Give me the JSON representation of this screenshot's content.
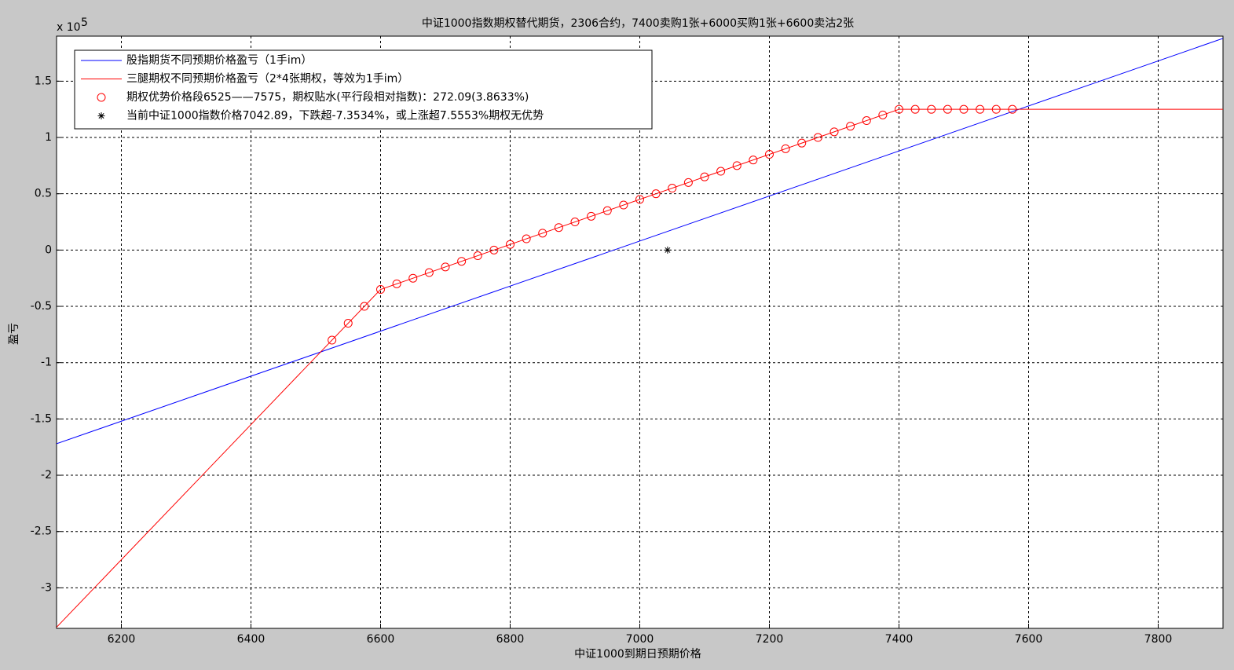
{
  "chart_data": {
    "type": "line",
    "title": "中证1000指数期权替代期货，2306合约，7400卖购1张+6000买购1张+6600卖沽2张",
    "x_label": "中证1000到期日预期价格",
    "y_label": "盈亏",
    "y_multiplier": {
      "base": "x 10",
      "exponent": "5"
    },
    "xlim": [
      6100,
      7900
    ],
    "ylim": [
      -3.36,
      1.9
    ],
    "xticks": [
      6200,
      6400,
      6600,
      6800,
      7000,
      7200,
      7400,
      7600,
      7800
    ],
    "yticks": [
      1.5,
      1,
      0.5,
      0,
      -0.5,
      -1,
      -1.5,
      -2,
      -2.5,
      -3
    ],
    "grid": true,
    "legend": "upper left",
    "series": [
      {
        "name": "股指期货不同预期价格盈亏（1手im）",
        "color": "#0000ff",
        "marker": "none",
        "x": [
          6100,
          7900
        ],
        "values": [
          -1.72,
          1.88
        ]
      },
      {
        "name": "三腿期权不同预期价格盈亏（2*4张期权，等效为1手im）",
        "color": "#ff0000",
        "marker": "none",
        "x": [
          6100,
          6600,
          7400,
          7900
        ],
        "values": [
          -3.35,
          -0.35,
          1.25,
          1.25
        ]
      },
      {
        "name": "期权优势价格段6525——7575，期权贴水(平行段相对指数)：272.09(3.8633%)",
        "color": "#ff0000",
        "marker": "o",
        "x": [
          6525,
          6550,
          6575,
          6600,
          6625,
          6650,
          6675,
          6700,
          6725,
          6750,
          6775,
          6800,
          6825,
          6850,
          6875,
          6900,
          6925,
          6950,
          6975,
          7000,
          7025,
          7050,
          7075,
          7100,
          7125,
          7150,
          7175,
          7200,
          7225,
          7250,
          7275,
          7300,
          7325,
          7350,
          7375,
          7400,
          7425,
          7450,
          7475,
          7500,
          7525,
          7550,
          7575
        ],
        "values": [
          -0.8,
          -0.65,
          -0.5,
          -0.35,
          -0.3,
          -0.25,
          -0.2,
          -0.15,
          -0.1,
          -0.05,
          0,
          0.05,
          0.1,
          0.15,
          0.2,
          0.25,
          0.3,
          0.35,
          0.4,
          0.45,
          0.5,
          0.55,
          0.6,
          0.65,
          0.7,
          0.75,
          0.8,
          0.85,
          0.9,
          0.95,
          1.0,
          1.05,
          1.1,
          1.15,
          1.2,
          1.25,
          1.25,
          1.25,
          1.25,
          1.25,
          1.25,
          1.25,
          1.25
        ]
      },
      {
        "name": "当前中证1000指数价格7042.89，下跌超-7.3534%，或上涨超7.5553%期权无优势",
        "color": "#000000",
        "marker": "*",
        "x": [
          7042.89
        ],
        "values": [
          0
        ]
      }
    ]
  }
}
